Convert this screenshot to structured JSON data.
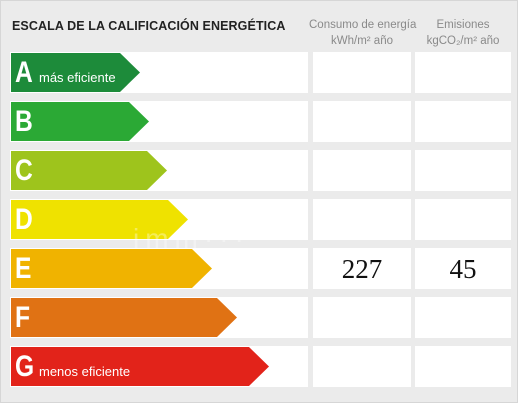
{
  "header": {
    "title": "ESCALA DE LA CALIFICACIÓN ENERGÉTICA",
    "energy_col": {
      "line1": "Consumo de energía",
      "line2": "kWh/m² año"
    },
    "emissions_col": {
      "line1": "Emisiones",
      "line2": "kgCO₂/m² año"
    }
  },
  "rows": [
    {
      "letter": "A",
      "desc": "más eficiente",
      "color": "#1d8b3a",
      "energy": "",
      "emissions": ""
    },
    {
      "letter": "B",
      "desc": "",
      "color": "#2ba935",
      "energy": "",
      "emissions": ""
    },
    {
      "letter": "C",
      "desc": "",
      "color": "#9ec41c",
      "energy": "",
      "emissions": ""
    },
    {
      "letter": "D",
      "desc": "",
      "color": "#efe200",
      "energy": "",
      "emissions": ""
    },
    {
      "letter": "E",
      "desc": "",
      "color": "#f0b300",
      "energy": "227",
      "emissions": "45"
    },
    {
      "letter": "F",
      "desc": "",
      "color": "#e07214",
      "energy": "",
      "emissions": ""
    },
    {
      "letter": "G",
      "desc": "menos eficiente",
      "color": "#e2231a",
      "energy": "",
      "emissions": ""
    }
  ],
  "watermark": "imm···"
}
